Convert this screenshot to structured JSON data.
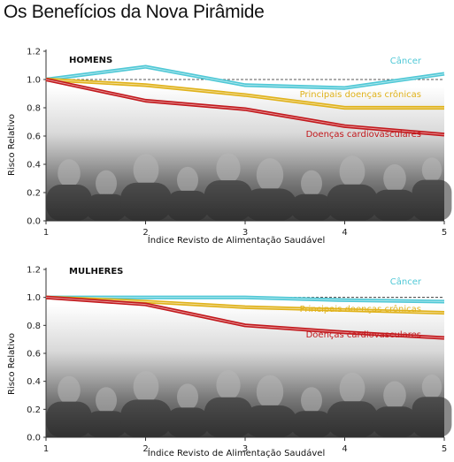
{
  "title": "Os Benefícios da Nova Pirâmide",
  "colors": {
    "cancer": "#4fc8d6",
    "cronicas": "#e0b21a",
    "cardio": "#c2181c"
  },
  "chart_data": [
    {
      "type": "line",
      "panel_label": "HOMENS",
      "xlabel": "Índice Revisto de Alimentação Saudável",
      "ylabel": "Risco Relativo",
      "x": [
        1,
        2,
        3,
        4,
        5
      ],
      "xticks": [
        "1",
        "2",
        "3",
        "4",
        "5"
      ],
      "yticks": [
        "0.0",
        "0.2",
        "0.4",
        "0.6",
        "0.8",
        "1.0",
        "1.2"
      ],
      "xlim": [
        1,
        5
      ],
      "ylim": [
        0,
        1.2
      ],
      "reference_line": 1.0,
      "series": [
        {
          "name": "Câncer",
          "key": "cancer",
          "values": [
            1.0,
            1.09,
            0.96,
            0.94,
            1.04
          ]
        },
        {
          "name": "Principais doenças crônicas",
          "key": "cronicas",
          "values": [
            1.0,
            0.96,
            0.89,
            0.8,
            0.8
          ]
        },
        {
          "name": "Doenças cardiovasculares",
          "key": "cardio",
          "values": [
            1.0,
            0.85,
            0.79,
            0.67,
            0.61
          ]
        }
      ]
    },
    {
      "type": "line",
      "panel_label": "MULHERES",
      "xlabel": "Índice Revisto de Alimentação Saudável",
      "ylabel": "Risco Relativo",
      "x": [
        1,
        2,
        3,
        4,
        5
      ],
      "xticks": [
        "1",
        "2",
        "3",
        "4",
        "5"
      ],
      "yticks": [
        "0.0",
        "0.2",
        "0.4",
        "0.6",
        "0.8",
        "1.0",
        "1.2"
      ],
      "xlim": [
        1,
        5
      ],
      "ylim": [
        0,
        1.2
      ],
      "reference_line": 1.0,
      "series": [
        {
          "name": "Câncer",
          "key": "cancer",
          "values": [
            1.0,
            1.0,
            1.0,
            0.98,
            0.97
          ]
        },
        {
          "name": "Principais doenças crônicas",
          "key": "cronicas",
          "values": [
            1.0,
            0.97,
            0.93,
            0.91,
            0.89
          ]
        },
        {
          "name": "Doenças cardiovasculares",
          "key": "cardio",
          "values": [
            1.0,
            0.95,
            0.8,
            0.75,
            0.71
          ]
        }
      ]
    }
  ]
}
